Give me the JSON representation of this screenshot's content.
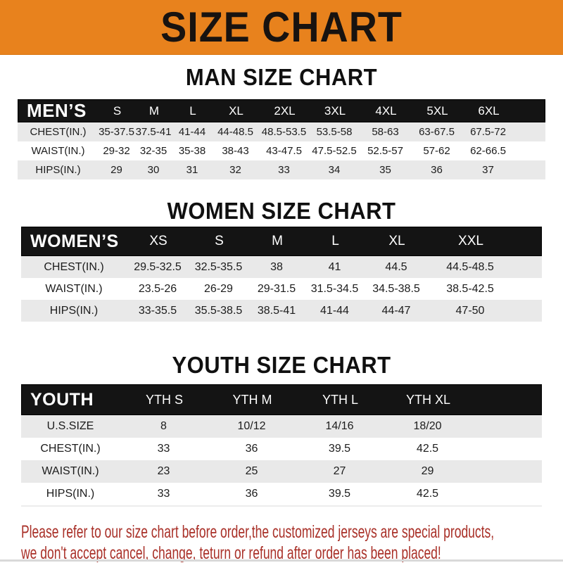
{
  "banner": {
    "title": "SIZE CHART",
    "bg_color": "#E8821D",
    "text_color": "#181310"
  },
  "sections": [
    {
      "id": "men",
      "title": "MAN SIZE CHART",
      "header_label": "MEN’S",
      "columns": [
        "S",
        "M",
        "L",
        "XL",
        "2XL",
        "3XL",
        "4XL",
        "5XL",
        "6XL"
      ],
      "rows": [
        {
          "label": "CHEST(IN.)",
          "values": [
            "35-37.5",
            "37.5-41",
            "41-44",
            "44-48.5",
            "48.5-53.5",
            "53.5-58",
            "58-63",
            "63-67.5",
            "67.5-72"
          ]
        },
        {
          "label": "WAIST(IN.)",
          "values": [
            "29-32",
            "32-35",
            "35-38",
            "38-43",
            "43-47.5",
            "47.5-52.5",
            "52.5-57",
            "57-62",
            "62-66.5"
          ]
        },
        {
          "label": "HIPS(IN.)",
          "values": [
            "29",
            "30",
            "31",
            "32",
            "33",
            "34",
            "35",
            "36",
            "37"
          ]
        }
      ]
    },
    {
      "id": "women",
      "title": "WOMEN SIZE CHART",
      "header_label": "WOMEN’S",
      "columns": [
        "XS",
        "S",
        "M",
        "L",
        "XL",
        "XXL"
      ],
      "rows": [
        {
          "label": "CHEST(IN.)",
          "values": [
            "29.5-32.5",
            "32.5-35.5",
            "38",
            "41",
            "44.5",
            "44.5-48.5"
          ]
        },
        {
          "label": "WAIST(IN.)",
          "values": [
            "23.5-26",
            "26-29",
            "29-31.5",
            "31.5-34.5",
            "34.5-38.5",
            "38.5-42.5"
          ]
        },
        {
          "label": "HIPS(IN.)",
          "values": [
            "33-35.5",
            "35.5-38.5",
            "38.5-41",
            "41-44",
            "44-47",
            "47-50"
          ]
        }
      ]
    },
    {
      "id": "youth",
      "title": "YOUTH SIZE CHART",
      "header_label": "YOUTH",
      "columns": [
        "YTH S",
        "YTH M",
        "YTH L",
        "YTH XL"
      ],
      "rows": [
        {
          "label": "U.S.SIZE",
          "values": [
            "8",
            "10/12",
            "14/16",
            "18/20"
          ]
        },
        {
          "label": "CHEST(IN.)",
          "values": [
            "33",
            "36",
            "39.5",
            "42.5"
          ]
        },
        {
          "label": "WAIST(IN.)",
          "values": [
            "23",
            "25",
            "27",
            "29"
          ]
        },
        {
          "label": "HIPS(IN.)",
          "values": [
            "33",
            "36",
            "39.5",
            "42.5"
          ]
        }
      ]
    }
  ],
  "disclaimer": {
    "line1": "Please refer to our size chart before order,the customized jerseys are special products,",
    "line2": "we don't accept cancel, change, teturn or refund after order has been placed!",
    "color": "#A93028"
  }
}
